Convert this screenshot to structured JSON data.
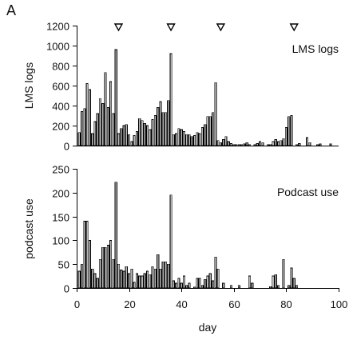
{
  "figure": {
    "letter": "A"
  },
  "chart_data": [
    {
      "type": "bar",
      "title": "LMS logs",
      "xlabel": "",
      "ylabel": "LMS logs",
      "xlim": [
        0,
        100
      ],
      "ylim": [
        0,
        1200
      ],
      "yticks": [
        0,
        200,
        400,
        600,
        800,
        1000,
        1200
      ],
      "xticks": [],
      "grid": false,
      "markers_x": [
        16,
        36,
        55,
        83
      ],
      "x": [
        1,
        2,
        3,
        4,
        5,
        6,
        7,
        8,
        9,
        10,
        11,
        12,
        13,
        14,
        15,
        16,
        17,
        18,
        19,
        20,
        21,
        22,
        23,
        24,
        25,
        26,
        27,
        28,
        29,
        30,
        31,
        32,
        33,
        34,
        35,
        36,
        37,
        38,
        39,
        40,
        41,
        42,
        43,
        44,
        45,
        46,
        47,
        48,
        49,
        50,
        51,
        52,
        53,
        54,
        55,
        56,
        57,
        58,
        59,
        60,
        61,
        62,
        63,
        64,
        65,
        66,
        67,
        68,
        69,
        70,
        71,
        72,
        73,
        74,
        75,
        76,
        77,
        78,
        79,
        80,
        81,
        82,
        83,
        84,
        85,
        86,
        87,
        88,
        89,
        90,
        91,
        92,
        93,
        94,
        95,
        96,
        97,
        98,
        99
      ],
      "values": [
        130,
        340,
        370,
        620,
        560,
        120,
        240,
        320,
        470,
        420,
        730,
        380,
        640,
        320,
        960,
        120,
        170,
        200,
        210,
        110,
        40,
        100,
        140,
        270,
        250,
        220,
        200,
        160,
        260,
        300,
        380,
        440,
        330,
        330,
        450,
        920,
        110,
        120,
        170,
        160,
        140,
        110,
        110,
        90,
        100,
        130,
        120,
        180,
        210,
        290,
        290,
        330,
        630,
        50,
        30,
        60,
        90,
        40,
        20,
        10,
        10,
        10,
        10,
        15,
        30,
        10,
        0,
        10,
        20,
        40,
        30,
        0,
        10,
        10,
        40,
        60,
        40,
        50,
        70,
        180,
        290,
        300,
        0,
        10,
        20,
        0,
        0,
        80,
        30,
        0,
        0,
        10,
        15,
        0,
        0,
        0,
        15,
        0,
        0
      ]
    },
    {
      "type": "bar",
      "title": "Podcast use",
      "xlabel": "day",
      "ylabel": "podcast use",
      "xlim": [
        0,
        100
      ],
      "ylim": [
        0,
        250
      ],
      "yticks": [
        0,
        50,
        100,
        150,
        200,
        250
      ],
      "xticks": [
        0,
        20,
        40,
        60,
        80,
        100
      ],
      "grid": false,
      "x": [
        1,
        2,
        3,
        4,
        5,
        6,
        7,
        8,
        9,
        10,
        11,
        12,
        13,
        14,
        15,
        16,
        17,
        18,
        19,
        20,
        21,
        22,
        23,
        24,
        25,
        26,
        27,
        28,
        29,
        30,
        31,
        32,
        33,
        34,
        35,
        36,
        37,
        38,
        39,
        40,
        41,
        42,
        43,
        44,
        45,
        46,
        47,
        48,
        49,
        50,
        51,
        52,
        53,
        54,
        55,
        56,
        57,
        58,
        59,
        60,
        61,
        62,
        63,
        64,
        65,
        66,
        67,
        68,
        69,
        70,
        71,
        72,
        73,
        74,
        75,
        76,
        77,
        78,
        79,
        80,
        81,
        82,
        83,
        84,
        85,
        86,
        87,
        88,
        89,
        90,
        91,
        92,
        93,
        94,
        95,
        96,
        97,
        98,
        99
      ],
      "values": [
        35,
        50,
        140,
        140,
        100,
        40,
        30,
        20,
        60,
        85,
        85,
        90,
        100,
        60,
        222,
        50,
        38,
        35,
        45,
        30,
        40,
        12,
        30,
        25,
        25,
        30,
        35,
        28,
        45,
        40,
        70,
        40,
        55,
        55,
        50,
        195,
        15,
        10,
        20,
        10,
        25,
        5,
        10,
        0,
        2,
        20,
        20,
        5,
        18,
        25,
        30,
        15,
        65,
        40,
        0,
        10,
        0,
        0,
        5,
        0,
        0,
        5,
        0,
        0,
        0,
        25,
        10,
        0,
        0,
        0,
        0,
        0,
        0,
        3,
        25,
        28,
        5,
        0,
        60,
        0,
        5,
        42,
        20,
        5,
        0,
        0,
        0,
        0,
        0,
        0,
        0,
        0,
        0,
        0,
        0,
        0,
        0,
        0,
        0
      ]
    }
  ]
}
